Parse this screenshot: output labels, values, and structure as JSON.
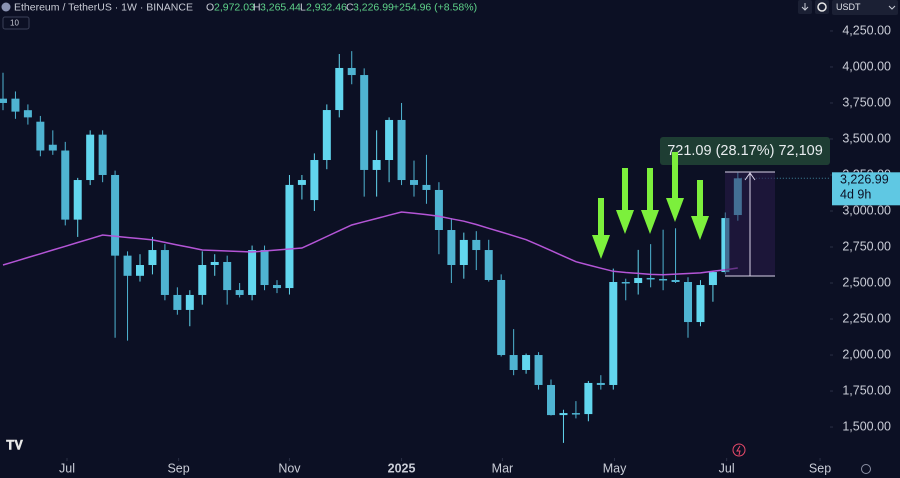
{
  "header": {
    "symbol": "Ethereum / TetherUS · 1W · BINANCE",
    "o_label": "O",
    "o": "2,972.03",
    "h_label": "H",
    "h": "3,265.44",
    "l_label": "L",
    "l": "2,932.46",
    "c_label": "C",
    "c": "3,226.99",
    "change": "+254.96 (+8.58%)",
    "indicators": "10",
    "currency": "USDT"
  },
  "chart_data": {
    "type": "candlestick",
    "up_color": "#62d6ee",
    "down_color": "#4fb4d2",
    "grid": false,
    "xlim": [
      -0.24,
      66.4
    ],
    "xticks": [
      {
        "value": 5.14,
        "label": "Jul"
      },
      {
        "value": 14.1,
        "label": "Sep"
      },
      {
        "value": 23.0,
        "label": "Nov"
      },
      {
        "value": 32.0,
        "label": "2025"
      },
      {
        "value": 40.1,
        "label": "Mar"
      },
      {
        "value": 49.1,
        "label": "May"
      },
      {
        "value": 58.1,
        "label": "Jul"
      },
      {
        "value": 65.6,
        "label": "Sep"
      }
    ],
    "ylim": [
      1285,
      4465
    ],
    "yticks": [
      {
        "value": 1500,
        "label": "1,500.00"
      },
      {
        "value": 1750,
        "label": "1,750.00"
      },
      {
        "value": 2000,
        "label": "2,000.00"
      },
      {
        "value": 2250,
        "label": "2,250.00"
      },
      {
        "value": 2500,
        "label": "2,500.00"
      },
      {
        "value": 2750,
        "label": "2,750.00"
      },
      {
        "value": 3000,
        "label": "3,000.00"
      },
      {
        "value": 3250,
        "label": "3,250.00"
      },
      {
        "value": 3500,
        "label": "3,500.00"
      },
      {
        "value": 3750,
        "label": "3,750.00"
      },
      {
        "value": 4000,
        "label": "4,000.00"
      },
      {
        "value": 4250,
        "label": "4,250.00"
      }
    ],
    "open": [
      3780,
      3780,
      3700,
      3620,
      3460,
      3420,
      2940,
      3215,
      3530,
      3250,
      2690,
      2550,
      2625,
      2729,
      2417,
      2313,
      2417,
      2625,
      2646,
      2451,
      2417,
      2729,
      2486,
      2465,
      3181,
      3076,
      3354,
      3701,
      3993,
      3944,
      3285,
      3354,
      3632,
      3215,
      3181,
      3146,
      2868,
      2625,
      2799,
      2729,
      2521,
      2000,
      1896,
      2000,
      1792,
      1583,
      1597,
      1590,
      1806,
      1792,
      2507,
      2500,
      2535,
      2528,
      2521,
      2507,
      2229,
      2486,
      2576,
      2972.03
    ],
    "high": [
      3960,
      3830,
      3740,
      3660,
      3560,
      3480,
      3230,
      3560,
      3560,
      3280,
      2720,
      2700,
      2820,
      2770,
      2470,
      2450,
      2720,
      2700,
      2690,
      2500,
      2760,
      2760,
      2520,
      3250,
      3250,
      3400,
      3740,
      4090,
      4110,
      3990,
      3560,
      3650,
      3750,
      3350,
      3390,
      3200,
      2950,
      2850,
      2860,
      2800,
      2560,
      2180,
      2010,
      2020,
      1830,
      1620,
      1680,
      1820,
      1860,
      2600,
      2530,
      2730,
      2770,
      2870,
      2880,
      2540,
      2520,
      2580,
      2990,
      3265.44
    ],
    "low": [
      3700,
      3640,
      3600,
      3380,
      3390,
      2900,
      2820,
      3180,
      3200,
      2120,
      2100,
      2510,
      2560,
      2380,
      2280,
      2200,
      2350,
      2550,
      2350,
      2400,
      2380,
      2450,
      2430,
      2420,
      3080,
      3000,
      3290,
      3650,
      3880,
      3100,
      3100,
      3200,
      3180,
      3100,
      3050,
      2700,
      2500,
      2530,
      2590,
      2510,
      1990,
      1860,
      1870,
      1760,
      1580,
      1390,
      1560,
      1540,
      1760,
      1760,
      2380,
      2420,
      2470,
      2450,
      2500,
      2120,
      2200,
      2370,
      2560,
      2932.46
    ],
    "close": [
      3750,
      3690,
      3650,
      3420,
      3420,
      2940,
      3215,
      3530,
      3250,
      2690,
      2550,
      2625,
      2729,
      2417,
      2313,
      2417,
      2625,
      2646,
      2451,
      2417,
      2729,
      2486,
      2465,
      3181,
      3215,
      3354,
      3701,
      3993,
      3944,
      3285,
      3354,
      3632,
      3215,
      3181,
      3146,
      2868,
      2625,
      2799,
      2729,
      2521,
      2000,
      1896,
      2000,
      1792,
      1583,
      1597,
      1590,
      1806,
      1792,
      2507,
      2500,
      2535,
      2528,
      2521,
      2507,
      2229,
      2486,
      2576,
      2951,
      3226.99
    ],
    "ma": {
      "color": "#b455d6",
      "values": [
        2625,
        2651,
        2677,
        2703,
        2729,
        2755,
        2781,
        2807,
        2833,
        2825,
        2816,
        2808,
        2799,
        2782,
        2764,
        2747,
        2729,
        2726,
        2722,
        2719,
        2715,
        2722,
        2729,
        2736,
        2743,
        2783,
        2823,
        2863,
        2903,
        2926,
        2948,
        2971,
        2993,
        2985,
        2975,
        2963,
        2946,
        2929,
        2906,
        2880,
        2854,
        2828,
        2801,
        2763,
        2725,
        2686,
        2648,
        2625,
        2603,
        2581,
        2573,
        2567,
        2560,
        2558,
        2562,
        2566,
        2570,
        2581,
        2592,
        2604
      ]
    },
    "last_price_label": "3,226.99",
    "countdown": "4d 9h",
    "measure_label": "721.09 (28.17%) 72,109"
  }
}
